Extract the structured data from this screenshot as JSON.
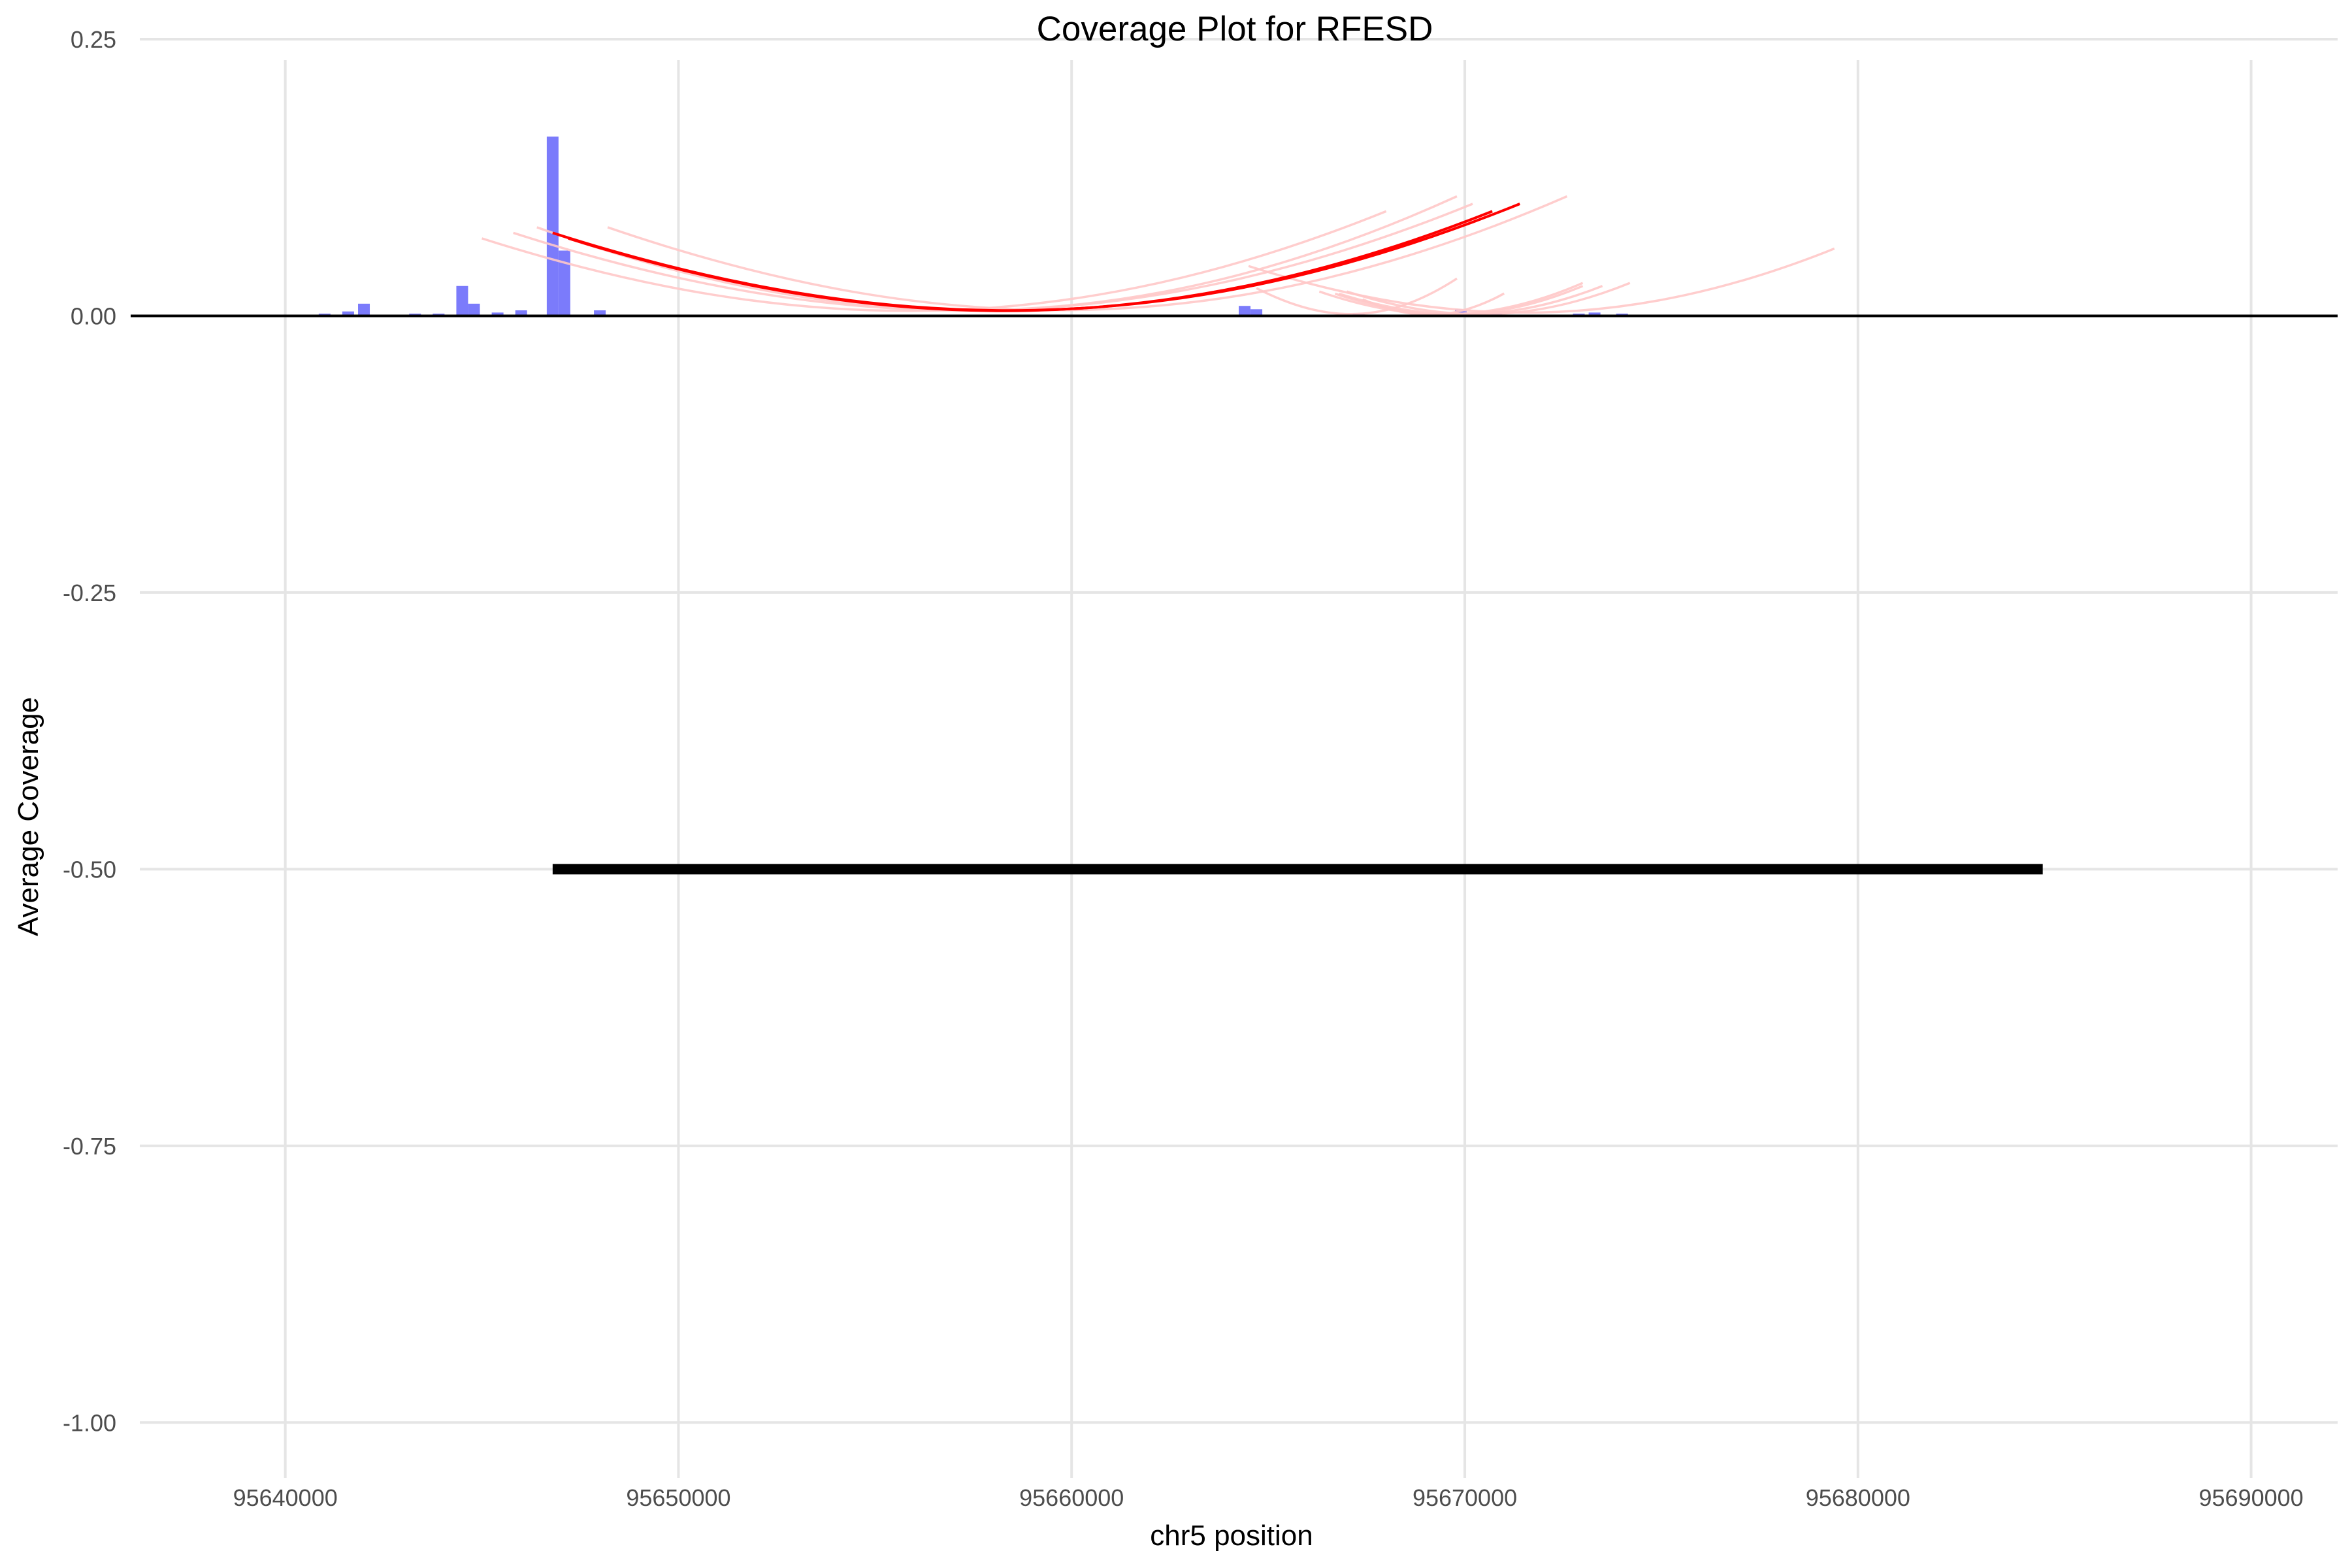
{
  "chart_data": {
    "type": "bar",
    "title": "Coverage Plot for RFESD",
    "xlabel": "chr5 position",
    "ylabel": "Average Coverage",
    "xlim": [
      95636300,
      95692200
    ],
    "ylim": [
      -1.05,
      0.25
    ],
    "x_ticks": [
      95640000,
      95650000,
      95660000,
      95670000,
      95680000,
      95690000
    ],
    "x_tick_labels": [
      "95640000",
      "95650000",
      "95660000",
      "95670000",
      "95680000",
      "95690000"
    ],
    "y_ticks": [
      0.25,
      0,
      -0.25,
      -0.5,
      -0.75,
      -1
    ],
    "y_tick_labels": [
      "0.25",
      "0.00",
      "-0.25",
      "-0.50",
      "-0.75",
      "-1.00"
    ],
    "grid": true,
    "colors": {
      "bars": "#7b7bfb",
      "arc_main": "#ff0000",
      "arc_faint": "#ffc8c8",
      "baseline": "#000000",
      "gene": "#000000",
      "grid": "#e5e5e5"
    },
    "series": [
      {
        "type": "bar",
        "points": [
          {
            "x": 95641000,
            "y": 0.002
          },
          {
            "x": 95641600,
            "y": 0.004
          },
          {
            "x": 95642000,
            "y": 0.011
          },
          {
            "x": 95643300,
            "y": 0.002
          },
          {
            "x": 95643900,
            "y": 0.002
          },
          {
            "x": 95644500,
            "y": 0.027
          },
          {
            "x": 95644800,
            "y": 0.011
          },
          {
            "x": 95645400,
            "y": 0.003
          },
          {
            "x": 95646000,
            "y": 0.005
          },
          {
            "x": 95646800,
            "y": 0.162
          },
          {
            "x": 95647100,
            "y": 0.059
          },
          {
            "x": 95648000,
            "y": 0.005
          },
          {
            "x": 95664400,
            "y": 0.009
          },
          {
            "x": 95664700,
            "y": 0.006
          },
          {
            "x": 95667300,
            "y": 0.002
          },
          {
            "x": 95669400,
            "y": 0.003
          },
          {
            "x": 95669900,
            "y": 0.006
          },
          {
            "x": 95670800,
            "y": 0.002
          },
          {
            "x": 95672900,
            "y": 0.002
          },
          {
            "x": 95673300,
            "y": 0.003
          },
          {
            "x": 95674000,
            "y": 0.002
          },
          {
            "x": 95679500,
            "y": 0.001
          },
          {
            "x": 95686800,
            "y": 0.001
          }
        ]
      },
      {
        "type": "arc",
        "arcs": [
          {
            "start": 95646800,
            "end": 95671400,
            "height": 0.075,
            "color": "#ff0000"
          },
          {
            "start": 95647200,
            "end": 95670700,
            "height": 0.07,
            "color": "#ff0000"
          },
          {
            "start": 95645000,
            "end": 95668000,
            "height": 0.07,
            "color": "#ffc8c8"
          },
          {
            "start": 95645800,
            "end": 95670200,
            "height": 0.075,
            "color": "#ffc8c8"
          },
          {
            "start": 95646400,
            "end": 95669800,
            "height": 0.08,
            "color": "#ffc8c8"
          },
          {
            "start": 95648200,
            "end": 95672600,
            "height": 0.08,
            "color": "#ffc8c8"
          },
          {
            "start": 95664500,
            "end": 95679400,
            "height": 0.045,
            "color": "#ffc8c8"
          },
          {
            "start": 95664700,
            "end": 95669800,
            "height": 0.025,
            "color": "#ffc8c8"
          },
          {
            "start": 95666700,
            "end": 95673000,
            "height": 0.02,
            "color": "#ffc8c8"
          },
          {
            "start": 95666800,
            "end": 95673500,
            "height": 0.02,
            "color": "#ffc8c8"
          },
          {
            "start": 95667000,
            "end": 95674200,
            "height": 0.022,
            "color": "#ffc8c8"
          },
          {
            "start": 95667400,
            "end": 95671000,
            "height": 0.015,
            "color": "#ffc8c8"
          },
          {
            "start": 95666300,
            "end": 95673000,
            "height": 0.022,
            "color": "#ffc8c8"
          }
        ]
      },
      {
        "type": "segment",
        "x_start": 95646800,
        "x_end": 95684700,
        "y": -0.5
      }
    ]
  }
}
